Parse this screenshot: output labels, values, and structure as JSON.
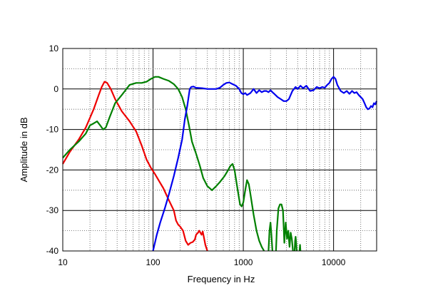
{
  "chart_data": {
    "type": "line",
    "xlabel": "Frequency in Hz",
    "ylabel": "Amplitude in dB",
    "xscale": "log",
    "xlim": [
      10,
      30000
    ],
    "ylim": [
      -40,
      10
    ],
    "grid": true,
    "x_tick_labels": [
      {
        "value": 10,
        "label": "10"
      },
      {
        "value": 100,
        "label": "100"
      },
      {
        "value": 1000,
        "label": "1000"
      },
      {
        "value": 10000,
        "label": "10000"
      }
    ],
    "y_tick_labels": [
      {
        "value": 10,
        "label": "10"
      },
      {
        "value": 0,
        "label": "0"
      },
      {
        "value": -10,
        "label": "-10"
      },
      {
        "value": -20,
        "label": "-20"
      },
      {
        "value": -30,
        "label": "-30"
      },
      {
        "value": -40,
        "label": "-40"
      }
    ],
    "series": [
      {
        "color": "#ee0000",
        "points": [
          [
            10,
            -18.5
          ],
          [
            12,
            -15.5
          ],
          [
            15,
            -12.5
          ],
          [
            18,
            -9.5
          ],
          [
            22,
            -5
          ],
          [
            25,
            -1.5
          ],
          [
            27,
            0.5
          ],
          [
            29,
            1.8
          ],
          [
            31,
            1.5
          ],
          [
            34,
            0
          ],
          [
            38,
            -2.5
          ],
          [
            45,
            -5.5
          ],
          [
            55,
            -8
          ],
          [
            65,
            -10.5
          ],
          [
            75,
            -14
          ],
          [
            85,
            -17.5
          ],
          [
            95,
            -19.5
          ],
          [
            105,
            -21
          ],
          [
            115,
            -22.5
          ],
          [
            130,
            -24.5
          ],
          [
            150,
            -27.5
          ],
          [
            170,
            -30
          ],
          [
            180,
            -32.5
          ],
          [
            190,
            -33.5
          ],
          [
            200,
            -34
          ],
          [
            215,
            -35
          ],
          [
            230,
            -37.5
          ],
          [
            245,
            -38.5
          ],
          [
            260,
            -38
          ],
          [
            275,
            -37.8
          ],
          [
            290,
            -37.2
          ],
          [
            300,
            -36
          ],
          [
            315,
            -35.5
          ],
          [
            325,
            -35
          ],
          [
            345,
            -36
          ],
          [
            355,
            -35.2
          ],
          [
            365,
            -36.5
          ],
          [
            380,
            -38.5
          ],
          [
            400,
            -40
          ]
        ]
      },
      {
        "color": "#008000",
        "points": [
          [
            10,
            -17
          ],
          [
            12,
            -15
          ],
          [
            15,
            -13
          ],
          [
            18,
            -11
          ],
          [
            20,
            -9
          ],
          [
            22,
            -8.5
          ],
          [
            24,
            -8
          ],
          [
            26,
            -9
          ],
          [
            28,
            -10
          ],
          [
            30,
            -9.5
          ],
          [
            33,
            -7
          ],
          [
            38,
            -3.5
          ],
          [
            45,
            -1.5
          ],
          [
            55,
            1
          ],
          [
            65,
            1.5
          ],
          [
            75,
            1.5
          ],
          [
            85,
            1.8
          ],
          [
            95,
            2.5
          ],
          [
            105,
            3
          ],
          [
            115,
            3
          ],
          [
            130,
            2.5
          ],
          [
            150,
            2
          ],
          [
            170,
            1.2
          ],
          [
            190,
            0
          ],
          [
            210,
            -2
          ],
          [
            230,
            -5
          ],
          [
            250,
            -9
          ],
          [
            270,
            -13
          ],
          [
            300,
            -16
          ],
          [
            330,
            -19
          ],
          [
            360,
            -22
          ],
          [
            400,
            -24
          ],
          [
            450,
            -25
          ],
          [
            500,
            -24
          ],
          [
            550,
            -23
          ],
          [
            620,
            -21.5
          ],
          [
            680,
            -20
          ],
          [
            720,
            -19
          ],
          [
            760,
            -18.5
          ],
          [
            800,
            -20
          ],
          [
            860,
            -24.5
          ],
          [
            920,
            -28.5
          ],
          [
            960,
            -29
          ],
          [
            1000,
            -28
          ],
          [
            1050,
            -25
          ],
          [
            1100,
            -22.5
          ],
          [
            1150,
            -23.5
          ],
          [
            1200,
            -26
          ],
          [
            1300,
            -31
          ],
          [
            1400,
            -35
          ],
          [
            1500,
            -37.5
          ],
          [
            1600,
            -39
          ],
          [
            1700,
            -40
          ]
        ]
      },
      {
        "color": "#0000ee",
        "points": [
          [
            100,
            -40
          ],
          [
            110,
            -36
          ],
          [
            120,
            -33
          ],
          [
            135,
            -29.5
          ],
          [
            150,
            -26
          ],
          [
            170,
            -21.5
          ],
          [
            190,
            -17
          ],
          [
            210,
            -12.5
          ],
          [
            225,
            -7.5
          ],
          [
            240,
            -4
          ],
          [
            255,
            0
          ],
          [
            265,
            0.5
          ],
          [
            280,
            0.6
          ],
          [
            300,
            0.3
          ],
          [
            350,
            0.2
          ],
          [
            400,
            0
          ],
          [
            450,
            0
          ],
          [
            500,
            0
          ],
          [
            550,
            0.3
          ],
          [
            600,
            1
          ],
          [
            650,
            1.5
          ],
          [
            700,
            1.6
          ],
          [
            760,
            1.2
          ],
          [
            830,
            0.8
          ],
          [
            900,
            0
          ],
          [
            950,
            -1
          ],
          [
            1000,
            -1.3
          ],
          [
            1050,
            -1
          ],
          [
            1100,
            -1.5
          ],
          [
            1200,
            -1
          ],
          [
            1300,
            0
          ],
          [
            1400,
            -1
          ],
          [
            1500,
            -0.3
          ],
          [
            1600,
            -0.8
          ],
          [
            1700,
            -0.5
          ],
          [
            1800,
            -0.5
          ],
          [
            1900,
            -0.8
          ],
          [
            2000,
            -0.3
          ],
          [
            2100,
            -0.8
          ],
          [
            2200,
            -1.2
          ],
          [
            2400,
            -2
          ],
          [
            2600,
            -2.5
          ],
          [
            2800,
            -3
          ],
          [
            3000,
            -3
          ],
          [
            3200,
            -2.5
          ],
          [
            3500,
            -0.5
          ],
          [
            3800,
            0.5
          ],
          [
            4000,
            0
          ],
          [
            4300,
            0.8
          ],
          [
            4600,
            0.2
          ],
          [
            5000,
            0.8
          ],
          [
            5500,
            -0.5
          ],
          [
            6000,
            -0.3
          ],
          [
            6500,
            0.5
          ],
          [
            7000,
            0.2
          ],
          [
            7500,
            0.5
          ],
          [
            8000,
            0.3
          ],
          [
            8500,
            1
          ],
          [
            9000,
            1.5
          ],
          [
            9500,
            2.5
          ],
          [
            10000,
            3
          ],
          [
            10500,
            2.5
          ],
          [
            11000,
            1
          ],
          [
            12000,
            -0.5
          ],
          [
            13000,
            -1
          ],
          [
            14000,
            -0.5
          ],
          [
            15000,
            -1.2
          ],
          [
            16000,
            -0.5
          ],
          [
            17000,
            -1
          ],
          [
            18000,
            -0.8
          ],
          [
            19000,
            -1.5
          ],
          [
            20000,
            -2
          ],
          [
            21000,
            -2.5
          ],
          [
            22000,
            -3.5
          ],
          [
            23000,
            -4.5
          ],
          [
            24000,
            -5
          ],
          [
            25000,
            -4.8
          ],
          [
            26000,
            -4.2
          ],
          [
            27000,
            -4.5
          ],
          [
            28000,
            -3.5
          ],
          [
            29000,
            -3.8
          ],
          [
            30000,
            -3
          ]
        ]
      }
    ],
    "green_tail": [
      {
        "points": [
          [
            1900,
            -40
          ],
          [
            1950,
            -35
          ],
          [
            2000,
            -33
          ],
          [
            2050,
            -36
          ],
          [
            2100,
            -40
          ]
        ]
      },
      {
        "points": [
          [
            2300,
            -40
          ],
          [
            2350,
            -35
          ],
          [
            2450,
            -29.5
          ],
          [
            2550,
            -28.5
          ],
          [
            2650,
            -28.5
          ],
          [
            2750,
            -30
          ],
          [
            2850,
            -38
          ],
          [
            2950,
            -33
          ],
          [
            3050,
            -37
          ],
          [
            3150,
            -35
          ],
          [
            3250,
            -39
          ],
          [
            3350,
            -35.5
          ],
          [
            3450,
            -37
          ],
          [
            3550,
            -40
          ]
        ]
      },
      {
        "points": [
          [
            3700,
            -40
          ],
          [
            3750,
            -37.5
          ],
          [
            3800,
            -36.5
          ],
          [
            3850,
            -38
          ],
          [
            3900,
            -40
          ]
        ]
      },
      {
        "points": [
          [
            4200,
            -40
          ],
          [
            4250,
            -38.5
          ],
          [
            4300,
            -40
          ]
        ]
      }
    ]
  }
}
